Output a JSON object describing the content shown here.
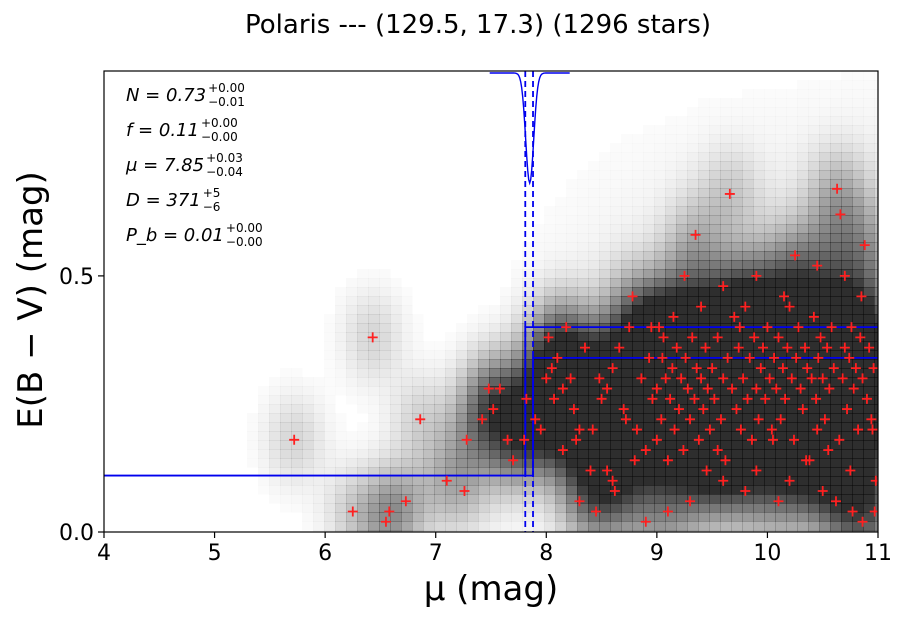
{
  "chart_data": {
    "type": "scatter",
    "title": "Polaris --- (129.5, 17.3) (1296 stars)",
    "xlabel": "μ (mag)",
    "ylabel": "E(B − V) (mag)",
    "xlim": [
      4,
      11
    ],
    "ylim": [
      0,
      0.9
    ],
    "xticks": [
      "4",
      "5",
      "6",
      "7",
      "8",
      "9",
      "10",
      "11"
    ],
    "yticks": [
      "0.0",
      "0.5"
    ],
    "grid": false,
    "background": "grayscale density map of extinction vs distance modulus",
    "annotations": [
      {
        "name": "N",
        "value": "0.73",
        "upper": "+0.00",
        "lower": "−0.01"
      },
      {
        "name": "f",
        "value": "0.11",
        "upper": "+0.00",
        "lower": "−0.00"
      },
      {
        "name": "μ",
        "value": "7.85",
        "upper": "+0.03",
        "lower": "−0.04"
      },
      {
        "name": "D",
        "value": "371",
        "upper": "+5",
        "lower": "−6"
      },
      {
        "name": "P_b",
        "value": "0.01",
        "upper": "+0.00",
        "lower": "−0.00"
      }
    ],
    "model": {
      "mu": 7.85,
      "mu_err_lo": 7.81,
      "mu_err_hi": 7.88,
      "foreground_reddening": 0.11,
      "background_reddening_lo": 0.34,
      "background_reddening_hi": 0.4
    },
    "series": [
      {
        "marker": "+",
        "color": "#ff2020",
        "points": [
          [
            5.72,
            0.18
          ],
          [
            6.43,
            0.38
          ],
          [
            6.25,
            0.04
          ],
          [
            6.55,
            0.02
          ],
          [
            6.58,
            0.04
          ],
          [
            6.73,
            0.06
          ],
          [
            6.86,
            0.22
          ],
          [
            7.1,
            0.1
          ],
          [
            7.26,
            0.08
          ],
          [
            7.28,
            0.18
          ],
          [
            7.42,
            0.22
          ],
          [
            7.48,
            0.28
          ],
          [
            7.52,
            0.24
          ],
          [
            7.58,
            0.28
          ],
          [
            7.65,
            0.18
          ],
          [
            7.7,
            0.14
          ],
          [
            7.82,
            0.26
          ],
          [
            7.8,
            0.18
          ],
          [
            7.9,
            0.22
          ],
          [
            7.95,
            0.2
          ],
          [
            8.0,
            0.3
          ],
          [
            8.05,
            0.32
          ],
          [
            8.02,
            0.38
          ],
          [
            8.1,
            0.34
          ],
          [
            8.15,
            0.28
          ],
          [
            8.18,
            0.4
          ],
          [
            8.22,
            0.3
          ],
          [
            8.27,
            0.18
          ],
          [
            8.35,
            0.36
          ],
          [
            8.4,
            0.12
          ],
          [
            8.42,
            0.2
          ],
          [
            8.48,
            0.3
          ],
          [
            8.45,
            0.04
          ],
          [
            8.5,
            0.26
          ],
          [
            8.55,
            0.12
          ],
          [
            8.6,
            0.32
          ],
          [
            8.62,
            0.08
          ],
          [
            8.66,
            0.36
          ],
          [
            8.7,
            0.24
          ],
          [
            8.72,
            0.22
          ],
          [
            8.75,
            0.4
          ],
          [
            8.78,
            0.46
          ],
          [
            8.82,
            0.2
          ],
          [
            8.86,
            0.3
          ],
          [
            8.9,
            0.16
          ],
          [
            8.93,
            0.34
          ],
          [
            8.96,
            0.26
          ],
          [
            9.0,
            0.28
          ],
          [
            9.02,
            0.4
          ],
          [
            9.04,
            0.22
          ],
          [
            9.06,
            0.38
          ],
          [
            9.08,
            0.3
          ],
          [
            9.1,
            0.14
          ],
          [
            9.12,
            0.26
          ],
          [
            9.14,
            0.32
          ],
          [
            9.16,
            0.2
          ],
          [
            9.18,
            0.36
          ],
          [
            9.2,
            0.24
          ],
          [
            9.22,
            0.3
          ],
          [
            9.24,
            0.16
          ],
          [
            9.26,
            0.34
          ],
          [
            9.28,
            0.28
          ],
          [
            9.3,
            0.22
          ],
          [
            9.32,
            0.38
          ],
          [
            9.34,
            0.26
          ],
          [
            9.36,
            0.32
          ],
          [
            9.38,
            0.18
          ],
          [
            9.4,
            0.3
          ],
          [
            9.42,
            0.24
          ],
          [
            9.44,
            0.36
          ],
          [
            9.46,
            0.28
          ],
          [
            9.48,
            0.2
          ],
          [
            9.5,
            0.32
          ],
          [
            9.52,
            0.26
          ],
          [
            9.55,
            0.38
          ],
          [
            9.58,
            0.22
          ],
          [
            9.6,
            0.3
          ],
          [
            9.62,
            0.14
          ],
          [
            9.64,
            0.34
          ],
          [
            9.66,
            0.66
          ],
          [
            9.68,
            0.28
          ],
          [
            9.7,
            0.42
          ],
          [
            9.72,
            0.24
          ],
          [
            9.74,
            0.36
          ],
          [
            9.76,
            0.2
          ],
          [
            9.78,
            0.3
          ],
          [
            9.8,
            0.44
          ],
          [
            9.82,
            0.26
          ],
          [
            9.84,
            0.34
          ],
          [
            9.86,
            0.18
          ],
          [
            9.88,
            0.38
          ],
          [
            9.9,
            0.28
          ],
          [
            9.92,
            0.22
          ],
          [
            9.94,
            0.32
          ],
          [
            9.96,
            0.36
          ],
          [
            9.98,
            0.26
          ],
          [
            10.0,
            0.4
          ],
          [
            10.02,
            0.3
          ],
          [
            10.04,
            0.2
          ],
          [
            10.06,
            0.34
          ],
          [
            10.08,
            0.28
          ],
          [
            10.1,
            0.38
          ],
          [
            10.12,
            0.22
          ],
          [
            10.14,
            0.32
          ],
          [
            10.16,
            0.26
          ],
          [
            10.18,
            0.36
          ],
          [
            10.2,
            0.44
          ],
          [
            10.22,
            0.3
          ],
          [
            10.24,
            0.18
          ],
          [
            10.26,
            0.34
          ],
          [
            10.28,
            0.4
          ],
          [
            10.3,
            0.28
          ],
          [
            10.32,
            0.24
          ],
          [
            10.34,
            0.36
          ],
          [
            10.36,
            0.32
          ],
          [
            10.38,
            0.14
          ],
          [
            10.4,
            0.3
          ],
          [
            10.42,
            0.42
          ],
          [
            10.44,
            0.26
          ],
          [
            10.46,
            0.34
          ],
          [
            10.48,
            0.38
          ],
          [
            10.5,
            0.3
          ],
          [
            10.52,
            0.22
          ],
          [
            10.54,
            0.36
          ],
          [
            10.56,
            0.28
          ],
          [
            10.58,
            0.4
          ],
          [
            10.6,
            0.32
          ],
          [
            10.62,
            0.06
          ],
          [
            10.63,
            0.67
          ],
          [
            10.66,
            0.62
          ],
          [
            10.68,
            0.3
          ],
          [
            10.7,
            0.36
          ],
          [
            10.72,
            0.24
          ],
          [
            10.74,
            0.34
          ],
          [
            10.76,
            0.4
          ],
          [
            10.78,
            0.28
          ],
          [
            10.8,
            0.32
          ],
          [
            10.82,
            0.2
          ],
          [
            10.84,
            0.38
          ],
          [
            10.86,
            0.3
          ],
          [
            10.88,
            0.56
          ],
          [
            10.9,
            0.26
          ],
          [
            10.92,
            0.36
          ],
          [
            10.94,
            0.22
          ],
          [
            10.96,
            0.32
          ],
          [
            10.98,
            0.1
          ],
          [
            10.97,
            0.04
          ],
          [
            10.86,
            0.02
          ],
          [
            10.77,
            0.04
          ],
          [
            10.5,
            0.08
          ],
          [
            10.2,
            0.1
          ],
          [
            9.9,
            0.12
          ],
          [
            9.6,
            0.1
          ],
          [
            9.3,
            0.06
          ],
          [
            9.1,
            0.04
          ],
          [
            8.9,
            0.02
          ],
          [
            8.6,
            0.1
          ],
          [
            8.3,
            0.06
          ],
          [
            9.8,
            0.08
          ],
          [
            10.1,
            0.06
          ],
          [
            10.35,
            0.14
          ],
          [
            10.55,
            0.16
          ],
          [
            10.75,
            0.12
          ],
          [
            9.45,
            0.12
          ],
          [
            8.8,
            0.14
          ],
          [
            8.15,
            0.16
          ],
          [
            9.0,
            0.18
          ],
          [
            9.55,
            0.16
          ],
          [
            10.05,
            0.18
          ],
          [
            10.45,
            0.2
          ],
          [
            10.65,
            0.18
          ],
          [
            10.95,
            0.2
          ],
          [
            9.35,
            0.58
          ],
          [
            9.25,
            0.5
          ],
          [
            10.45,
            0.52
          ],
          [
            10.7,
            0.5
          ],
          [
            10.25,
            0.54
          ],
          [
            9.9,
            0.5
          ],
          [
            9.6,
            0.48
          ],
          [
            8.95,
            0.4
          ],
          [
            8.3,
            0.2
          ],
          [
            8.07,
            0.26
          ],
          [
            9.15,
            0.42
          ],
          [
            9.75,
            0.4
          ],
          [
            10.15,
            0.46
          ],
          [
            10.85,
            0.46
          ],
          [
            9.4,
            0.44
          ],
          [
            8.55,
            0.28
          ],
          [
            8.25,
            0.24
          ],
          [
            9.05,
            0.34
          ]
        ]
      }
    ]
  }
}
